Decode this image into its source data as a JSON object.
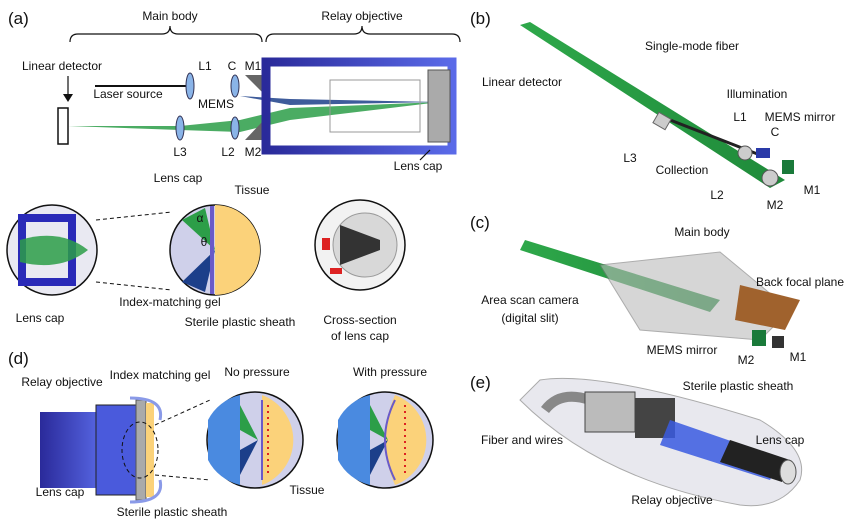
{
  "panels": [
    {
      "label": "(a)",
      "texts": [
        "Main body",
        "Relay objective",
        "Linear detector",
        "L1",
        "C",
        "M1",
        "Laser source",
        "MEMS",
        "L3",
        "L2",
        "M2",
        "Lens cap",
        "Lens cap",
        "Lens cap",
        "Tissue",
        "α",
        "θ",
        "Index-matching gel",
        "Sterile plastic sheath",
        "Cross-section",
        "of lens cap"
      ]
    },
    {
      "label": "(b)",
      "texts": [
        "Linear detector",
        "Single-mode fiber",
        "Illumination",
        "L1",
        "MEMS mirror",
        "C",
        "L3",
        "Collection",
        "L2",
        "M2",
        "M1"
      ]
    },
    {
      "label": "(c)",
      "texts": [
        "Main body",
        "Back focal plane",
        "Area scan camera",
        "(digital slit)",
        "MEMS mirror",
        "M2",
        "M1"
      ]
    },
    {
      "label": "(d)",
      "texts": [
        "Relay objective",
        "Index matching gel",
        "No pressure",
        "With pressure",
        "Lens cap",
        "Sterile plastic sheath",
        "Tissue"
      ]
    },
    {
      "label": "(e)",
      "texts": [
        "Sterile plastic sheath",
        "Fiber and wires",
        "Lens cap",
        "Relay objective"
      ]
    }
  ]
}
